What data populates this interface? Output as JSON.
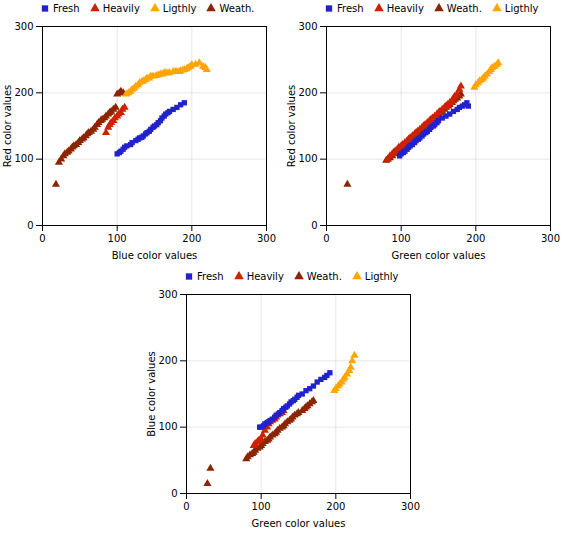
{
  "chart_data": [
    {
      "type": "scatter",
      "xlabel": "Blue color values",
      "ylabel": "Red color values",
      "xlim": [
        0,
        300
      ],
      "ylim": [
        0,
        300
      ],
      "xticks": [
        0,
        100,
        200,
        300
      ],
      "yticks": [
        0,
        100,
        200,
        300
      ],
      "grid": true,
      "legend": "upper left",
      "series": [
        {
          "name": "Fresh",
          "color": "#2222CC",
          "marker": "square",
          "x": [
            100,
            103,
            105,
            108,
            110,
            113,
            118,
            120,
            125,
            128,
            130,
            133,
            135,
            138,
            140,
            143,
            145,
            148,
            150,
            153,
            155,
            158,
            160,
            163,
            165,
            168,
            170,
            175,
            180,
            185,
            190
          ],
          "values": [
            108,
            110,
            112,
            115,
            118,
            120,
            122,
            125,
            128,
            130,
            132,
            133,
            135,
            138,
            140,
            142,
            145,
            148,
            150,
            152,
            155,
            158,
            162,
            165,
            168,
            170,
            172,
            175,
            178,
            182,
            185
          ]
        },
        {
          "name": "Heavily",
          "color": "#CC2200",
          "marker": "triangle",
          "x": [
            85,
            88,
            90,
            92,
            95,
            97,
            100,
            102,
            105,
            107,
            110
          ],
          "values": [
            140,
            148,
            152,
            155,
            158,
            162,
            165,
            168,
            170,
            175,
            178
          ]
        },
        {
          "name": "Ligthly",
          "color": "#FFA500",
          "marker": "triangle",
          "x": [
            112,
            115,
            118,
            120,
            123,
            125,
            128,
            130,
            133,
            135,
            138,
            140,
            143,
            145,
            148,
            152,
            155,
            158,
            160,
            163,
            165,
            168,
            170,
            175,
            178,
            180,
            183,
            185,
            188,
            190,
            193,
            195,
            198,
            200,
            205,
            210,
            215,
            218,
            220
          ],
          "values": [
            198,
            200,
            202,
            205,
            207,
            210,
            212,
            215,
            217,
            218,
            220,
            222,
            222,
            225,
            225,
            226,
            227,
            228,
            228,
            230,
            230,
            230,
            230,
            232,
            232,
            232,
            232,
            233,
            234,
            235,
            236,
            238,
            240,
            242,
            243,
            245,
            240,
            238,
            235
          ]
        },
        {
          "name": "Weath.",
          "color": "#8B2500",
          "marker": "triangle",
          "x": [
            18,
            22,
            25,
            28,
            30,
            33,
            35,
            38,
            40,
            42,
            45,
            48,
            50,
            53,
            55,
            58,
            60,
            62,
            65,
            68,
            70,
            73,
            75,
            78,
            80,
            83,
            85,
            88,
            90,
            92,
            95,
            98,
            100,
            103,
            105,
            108
          ],
          "values": [
            62,
            95,
            100,
            105,
            108,
            110,
            112,
            115,
            118,
            120,
            122,
            125,
            128,
            130,
            132,
            135,
            138,
            140,
            142,
            145,
            148,
            152,
            155,
            158,
            160,
            162,
            165,
            168,
            170,
            172,
            175,
            178,
            198,
            200,
            202,
            200
          ]
        }
      ]
    },
    {
      "type": "scatter",
      "xlabel": "Green color values",
      "ylabel": "Red color values",
      "xlim": [
        0,
        300
      ],
      "ylim": [
        0,
        300
      ],
      "xticks": [
        0,
        100,
        200,
        300
      ],
      "yticks": [
        0,
        100,
        200,
        300
      ],
      "grid": true,
      "legend": "upper left",
      "series": [
        {
          "name": "Fresh",
          "color": "#2222CC",
          "marker": "square",
          "x": [
            98,
            100,
            103,
            105,
            108,
            110,
            112,
            115,
            118,
            120,
            123,
            125,
            128,
            130,
            133,
            135,
            138,
            140,
            143,
            145,
            148,
            150,
            155,
            160,
            165,
            170,
            175,
            178,
            182,
            185,
            188,
            190
          ],
          "values": [
            105,
            108,
            110,
            112,
            115,
            118,
            120,
            122,
            125,
            128,
            130,
            132,
            135,
            138,
            140,
            142,
            145,
            148,
            150,
            152,
            155,
            158,
            162,
            165,
            168,
            172,
            175,
            178,
            180,
            182,
            185,
            180
          ]
        },
        {
          "name": "Heavily",
          "color": "#CC2200",
          "marker": "triangle",
          "x": [
            82,
            85,
            88,
            90,
            92,
            95,
            97,
            100,
            102,
            105,
            108,
            110,
            112,
            115,
            118,
            120,
            122,
            125,
            128,
            130,
            132,
            135,
            138,
            140,
            142,
            145,
            148,
            150,
            152,
            155,
            158,
            160,
            162,
            165,
            168,
            170,
            172,
            175,
            178,
            180
          ],
          "values": [
            100,
            105,
            108,
            110,
            112,
            115,
            118,
            120,
            122,
            125,
            128,
            130,
            132,
            135,
            138,
            140,
            142,
            145,
            148,
            150,
            152,
            155,
            158,
            160,
            162,
            165,
            168,
            170,
            172,
            175,
            178,
            180,
            182,
            185,
            188,
            192,
            195,
            198,
            205,
            210
          ]
        },
        {
          "name": "Weath.",
          "color": "#8B2500",
          "marker": "triangle",
          "x": [
            28,
            80,
            82,
            85,
            88,
            90,
            92,
            95,
            98,
            100,
            102,
            105,
            108,
            110,
            112,
            115,
            118,
            120,
            122,
            125,
            128,
            130,
            132,
            135,
            138,
            140,
            142,
            145,
            148,
            150,
            152,
            155,
            158,
            160,
            163,
            165,
            168,
            170,
            172,
            175,
            178,
            180
          ],
          "values": [
            62,
            98,
            100,
            102,
            105,
            108,
            110,
            112,
            115,
            118,
            120,
            122,
            125,
            128,
            130,
            132,
            135,
            138,
            140,
            142,
            145,
            148,
            150,
            152,
            155,
            158,
            160,
            162,
            165,
            168,
            170,
            172,
            175,
            178,
            180,
            182,
            185,
            188,
            190,
            192,
            195,
            198
          ]
        },
        {
          "name": "Ligthly",
          "color": "#FFA500",
          "marker": "triangle",
          "x": [
            198,
            200,
            203,
            205,
            208,
            210,
            212,
            215,
            218,
            220,
            222,
            225,
            228,
            230
          ],
          "values": [
            208,
            212,
            215,
            218,
            220,
            222,
            225,
            228,
            232,
            235,
            238,
            240,
            242,
            245
          ]
        }
      ]
    },
    {
      "type": "scatter",
      "xlabel": "Green color values",
      "ylabel": "Blue color values",
      "xlim": [
        0,
        300
      ],
      "ylim": [
        0,
        300
      ],
      "xticks": [
        0,
        100,
        200,
        300
      ],
      "yticks": [
        0,
        100,
        200,
        300
      ],
      "grid": true,
      "legend": "upper left",
      "series": [
        {
          "name": "Fresh",
          "color": "#2222CC",
          "marker": "square",
          "x": [
            98,
            100,
            103,
            105,
            108,
            110,
            112,
            115,
            118,
            120,
            123,
            125,
            128,
            130,
            133,
            135,
            138,
            140,
            143,
            145,
            148,
            150,
            155,
            160,
            165,
            170,
            175,
            180,
            185,
            188,
            192
          ],
          "values": [
            100,
            100,
            102,
            105,
            107,
            108,
            110,
            112,
            115,
            118,
            120,
            122,
            125,
            128,
            130,
            132,
            135,
            138,
            140,
            142,
            145,
            148,
            150,
            155,
            158,
            162,
            168,
            172,
            175,
            178,
            182
          ]
        },
        {
          "name": "Heavily",
          "color": "#CC2200",
          "marker": "triangle",
          "x": [
            90,
            92,
            95,
            97,
            100,
            102,
            105,
            108,
            110,
            112,
            115,
            118,
            120,
            122,
            125,
            128,
            130
          ],
          "values": [
            72,
            75,
            78,
            80,
            82,
            88,
            95,
            100,
            105,
            108,
            110,
            112,
            115,
            118,
            120,
            122,
            125
          ]
        },
        {
          "name": "Weath.",
          "color": "#8B2500",
          "marker": "triangle",
          "x": [
            28,
            32,
            80,
            82,
            85,
            88,
            90,
            92,
            95,
            98,
            100,
            102,
            105,
            108,
            110,
            112,
            115,
            118,
            120,
            122,
            125,
            128,
            130,
            132,
            135,
            138,
            140,
            142,
            145,
            148,
            150,
            155,
            158,
            160,
            162,
            165,
            168,
            170
          ],
          "values": [
            15,
            38,
            52,
            55,
            58,
            60,
            62,
            65,
            68,
            70,
            72,
            75,
            78,
            80,
            82,
            85,
            88,
            90,
            92,
            95,
            98,
            100,
            102,
            105,
            108,
            110,
            112,
            115,
            118,
            120,
            122,
            125,
            128,
            130,
            132,
            135,
            138,
            140
          ]
        },
        {
          "name": "Ligthly",
          "color": "#FFA500",
          "marker": "triangle",
          "x": [
            198,
            200,
            203,
            205,
            208,
            210,
            212,
            215,
            218,
            220,
            222,
            225
          ],
          "values": [
            155,
            158,
            162,
            165,
            168,
            172,
            175,
            180,
            185,
            190,
            200,
            208
          ]
        }
      ]
    }
  ]
}
